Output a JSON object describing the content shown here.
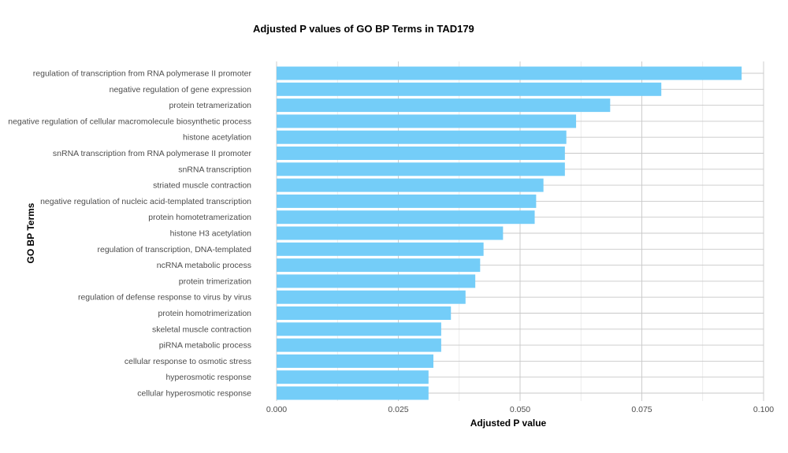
{
  "chart_data": {
    "type": "bar",
    "orientation": "horizontal",
    "title": "Adjusted P values of GO BP Terms in TAD179",
    "xlabel": "Adjusted P value",
    "ylabel": "GO BP Terms",
    "xlim": [
      0,
      0.1
    ],
    "xticks": [
      "0.000",
      "0.025",
      "0.050",
      "0.075",
      "0.100"
    ],
    "xtick_values": [
      0,
      0.025,
      0.05,
      0.075,
      0.1
    ],
    "bar_color": "#74CDF8",
    "grid": true,
    "categories": [
      "regulation of transcription from RNA polymerase II promoter",
      "negative regulation of gene expression",
      "protein tetramerization",
      "negative regulation of cellular macromolecule biosynthetic process",
      "histone acetylation",
      "snRNA transcription from RNA polymerase II promoter",
      "snRNA transcription",
      "striated muscle contraction",
      "negative regulation of nucleic acid-templated transcription",
      "protein homotetramerization",
      "histone H3 acetylation",
      "regulation of transcription, DNA-templated",
      "ncRNA metabolic process",
      "protein trimerization",
      "regulation of defense response to virus by virus",
      "protein homotrimerization",
      "skeletal muscle contraction",
      "piRNA metabolic process",
      "cellular response to osmotic stress",
      "hyperosmotic response",
      "cellular hyperosmotic response"
    ],
    "values": [
      0.0955,
      0.079,
      0.0685,
      0.0615,
      0.0595,
      0.0592,
      0.0592,
      0.0548,
      0.0533,
      0.053,
      0.0465,
      0.0425,
      0.0418,
      0.0408,
      0.0388,
      0.0358,
      0.0338,
      0.0338,
      0.0322,
      0.0312,
      0.0312
    ]
  }
}
